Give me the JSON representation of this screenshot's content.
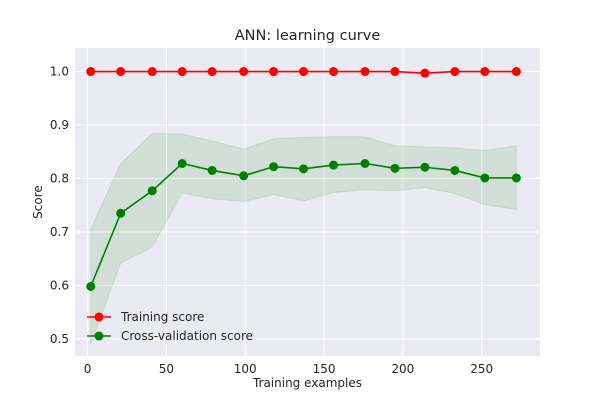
{
  "chart_data": {
    "type": "line",
    "title": "ANN: learning curve",
    "xlabel": "Training examples",
    "ylabel": "Score",
    "xlim": [
      -8,
      287
    ],
    "ylim": [
      0.468,
      1.044
    ],
    "xticks": [
      0,
      50,
      100,
      150,
      200,
      250
    ],
    "yticks": [
      0.5,
      0.6,
      0.7,
      0.8,
      0.9,
      1.0
    ],
    "grid": true,
    "legend_position": "lower-left",
    "x": [
      2,
      21,
      41,
      60,
      79,
      99,
      118,
      137,
      156,
      176,
      195,
      214,
      233,
      252,
      272
    ],
    "series": [
      {
        "name": "Training score",
        "color": "#ff0000",
        "values": [
          1.0,
          1.0,
          1.0,
          1.0,
          1.0,
          1.0,
          1.0,
          1.0,
          1.0,
          1.0,
          1.0,
          0.997,
          1.0,
          1.0,
          1.0
        ],
        "band_lower": [
          1.0,
          1.0,
          1.0,
          1.0,
          1.0,
          1.0,
          1.0,
          1.0,
          1.0,
          1.0,
          1.0,
          0.994,
          1.0,
          1.0,
          1.0
        ],
        "band_upper": [
          1.0,
          1.0,
          1.0,
          1.0,
          1.0,
          1.0,
          1.0,
          1.0,
          1.0,
          1.0,
          1.0,
          1.0,
          1.0,
          1.0,
          1.0
        ]
      },
      {
        "name": "Cross-validation score",
        "color": "#008000",
        "values": [
          0.598,
          0.735,
          0.777,
          0.828,
          0.815,
          0.805,
          0.822,
          0.818,
          0.825,
          0.828,
          0.819,
          0.821,
          0.815,
          0.801,
          0.801
        ],
        "band_lower": [
          0.49,
          0.642,
          0.672,
          0.773,
          0.762,
          0.757,
          0.77,
          0.758,
          0.774,
          0.779,
          0.777,
          0.783,
          0.772,
          0.751,
          0.742
        ],
        "band_upper": [
          0.705,
          0.828,
          0.884,
          0.883,
          0.87,
          0.855,
          0.874,
          0.877,
          0.878,
          0.878,
          0.861,
          0.859,
          0.857,
          0.852,
          0.861
        ]
      }
    ]
  }
}
